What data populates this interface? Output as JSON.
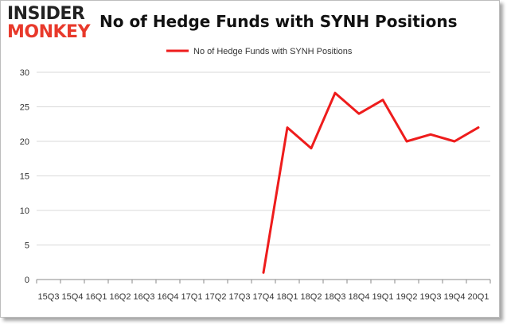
{
  "brand": {
    "logo_top": "INSIDER",
    "logo_bottom": "MONKEY"
  },
  "colors": {
    "series": "#ee1c1c",
    "grid": "#d9d9d9",
    "axis": "#888888",
    "text": "#333333",
    "logo_accent": "#e8392b"
  },
  "chart_data": {
    "type": "line",
    "title": "No of Hedge Funds with SYNH Positions",
    "xlabel": "",
    "ylabel": "",
    "legend": "top-center",
    "grid": true,
    "ylim": [
      0,
      30
    ],
    "yticks": [
      0,
      5,
      10,
      15,
      20,
      25,
      30
    ],
    "categories": [
      "2015Q3",
      "2015Q4",
      "2016Q1",
      "2016Q2",
      "2016Q3",
      "2016Q4",
      "2017Q1",
      "2017Q2",
      "2017Q3",
      "2017Q4",
      "2018Q1",
      "2018Q2",
      "2018Q3",
      "2018Q4",
      "2019Q1",
      "2019Q2",
      "2019Q3",
      "2019Q4",
      "2020Q1"
    ],
    "tick_labels": [
      "15Q3",
      "15Q4",
      "16Q1",
      "16Q2",
      "16Q3",
      "16Q4",
      "17Q1",
      "17Q2",
      "17Q3",
      "17Q4",
      "18Q1",
      "18Q2",
      "18Q3",
      "18Q4",
      "19Q1",
      "19Q2",
      "19Q3",
      "19Q4",
      "20Q1"
    ],
    "series": [
      {
        "name": "No of Hedge Funds with SYNH Positions",
        "values": [
          null,
          null,
          null,
          null,
          null,
          null,
          null,
          null,
          null,
          1,
          22,
          19,
          27,
          24,
          26,
          20,
          21,
          20,
          22
        ]
      }
    ]
  }
}
